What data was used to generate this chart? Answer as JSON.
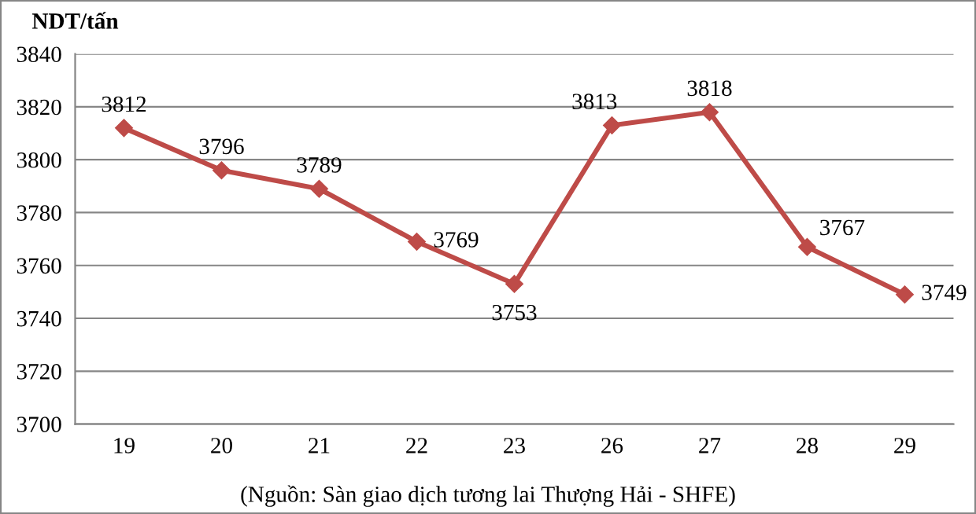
{
  "chart_data": {
    "type": "line",
    "ylabel": "NDT/tấn",
    "categories": [
      "19",
      "20",
      "21",
      "22",
      "23",
      "26",
      "27",
      "28",
      "29"
    ],
    "series": [
      {
        "color": "#be4b48",
        "values": [
          3812,
          3796,
          3789,
          3769,
          3753,
          3813,
          3818,
          3767,
          3749
        ]
      }
    ],
    "ylim": [
      3700,
      3840
    ],
    "yticks": [
      3700,
      3720,
      3740,
      3760,
      3780,
      3800,
      3820,
      3840
    ],
    "grid": "y",
    "marker": "diamond",
    "line_style": "solid",
    "data_labels": true,
    "legend": false,
    "annotations": [
      "(Nguồn: Sàn giao dịch tương lai Thượng Hải - SHFE)"
    ]
  }
}
